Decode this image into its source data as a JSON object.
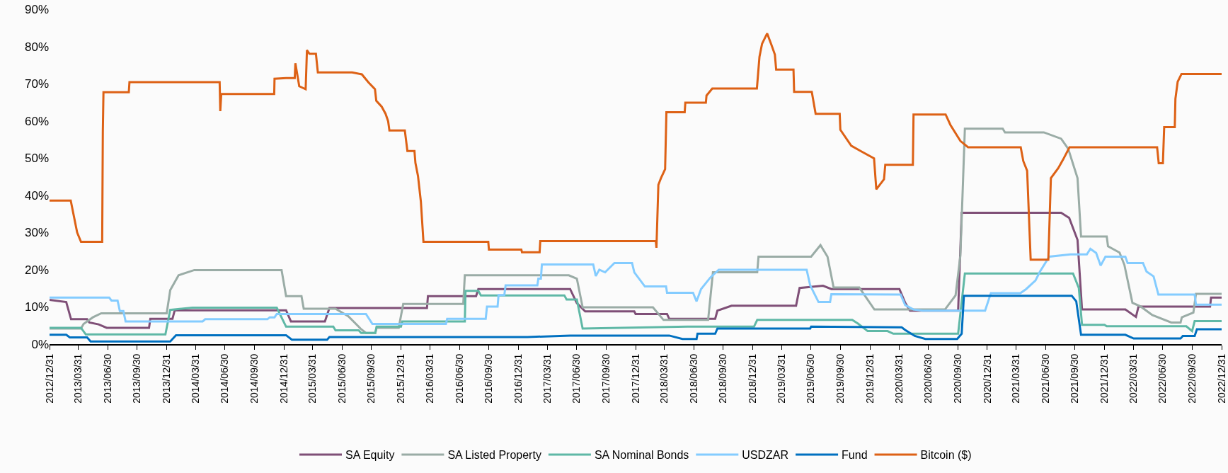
{
  "chart_data": {
    "type": "line",
    "legend": "bottom",
    "grid": false,
    "marker": "none",
    "line_style": "solid",
    "xlim": [
      "2012-12-31",
      "2022-12-31"
    ],
    "xticks": [
      {
        "value": "2012-12-31",
        "label": "2012/12/31"
      },
      {
        "value": "2013-03-31",
        "label": "2013/03/31"
      },
      {
        "value": "2013-06-30",
        "label": "2013/06/30"
      },
      {
        "value": "2013-09-30",
        "label": "2013/09/30"
      },
      {
        "value": "2013-12-31",
        "label": "2013/12/31"
      },
      {
        "value": "2014-03-31",
        "label": "2014/03/31"
      },
      {
        "value": "2014-06-30",
        "label": "2014/06/30"
      },
      {
        "value": "2014-09-30",
        "label": "2014/09/30"
      },
      {
        "value": "2014-12-31",
        "label": "2014/12/31"
      },
      {
        "value": "2015-03-31",
        "label": "2015/03/31"
      },
      {
        "value": "2015-06-30",
        "label": "2015/06/30"
      },
      {
        "value": "2015-09-30",
        "label": "2015/09/30"
      },
      {
        "value": "2015-12-31",
        "label": "2015/12/31"
      },
      {
        "value": "2016-03-31",
        "label": "2016/03/31"
      },
      {
        "value": "2016-06-30",
        "label": "2016/06/30"
      },
      {
        "value": "2016-09-30",
        "label": "2016/09/30"
      },
      {
        "value": "2016-12-31",
        "label": "2016/12/31"
      },
      {
        "value": "2017-03-31",
        "label": "2017/03/31"
      },
      {
        "value": "2017-06-30",
        "label": "2017/06/30"
      },
      {
        "value": "2017-09-30",
        "label": "2017/09/30"
      },
      {
        "value": "2017-12-31",
        "label": "2017/12/31"
      },
      {
        "value": "2018-03-31",
        "label": "2018/03/31"
      },
      {
        "value": "2018-06-30",
        "label": "2018/06/30"
      },
      {
        "value": "2018-09-30",
        "label": "2018/09/30"
      },
      {
        "value": "2018-12-31",
        "label": "2018/12/31"
      },
      {
        "value": "2019-03-31",
        "label": "2019/03/31"
      },
      {
        "value": "2019-06-30",
        "label": "2019/06/30"
      },
      {
        "value": "2019-09-30",
        "label": "2019/09/30"
      },
      {
        "value": "2019-12-31",
        "label": "2019/12/31"
      },
      {
        "value": "2020-03-31",
        "label": "2020/03/31"
      },
      {
        "value": "2020-06-30",
        "label": "2020/06/30"
      },
      {
        "value": "2020-09-30",
        "label": "2020/09/30"
      },
      {
        "value": "2020-12-31",
        "label": "2020/12/31"
      },
      {
        "value": "2021-03-31",
        "label": "2021/03/31"
      },
      {
        "value": "2021-06-30",
        "label": "2021/06/30"
      },
      {
        "value": "2021-09-30",
        "label": "2021/09/30"
      },
      {
        "value": "2021-12-31",
        "label": "2021/12/31"
      },
      {
        "value": "2022-03-31",
        "label": "2022/03/31"
      },
      {
        "value": "2022-06-30",
        "label": "2022/06/30"
      },
      {
        "value": "2022-09-30",
        "label": "2022/09/30"
      },
      {
        "value": "2022-12-31",
        "label": "2022/12/31"
      }
    ],
    "ylim": [
      0,
      90
    ],
    "yticks": [
      {
        "value": 0,
        "label": "0%"
      },
      {
        "value": 10,
        "label": "10%"
      },
      {
        "value": 20,
        "label": "20%"
      },
      {
        "value": 30,
        "label": "30%"
      },
      {
        "value": 40,
        "label": "40%"
      },
      {
        "value": 50,
        "label": "50%"
      },
      {
        "value": 60,
        "label": "60%"
      },
      {
        "value": 70,
        "label": "70%"
      },
      {
        "value": 80,
        "label": "80%"
      },
      {
        "value": 90,
        "label": "90%"
      }
    ],
    "series": [
      {
        "name": "SA Equity",
        "color": "#7f4f77",
        "x": [
          "2012-12-31",
          "2013-02-21",
          "2013-03-08",
          "2013-04-27",
          "2013-05-04",
          "2013-06-02",
          "2013-06-27",
          "2013-11-06",
          "2013-11-10",
          "2014-01-18",
          "2014-01-25",
          "2015-01-07",
          "2015-01-22",
          "2015-05-08",
          "2015-05-22",
          "2016-03-21",
          "2016-03-24",
          "2016-08-21",
          "2016-08-28",
          "2017-06-10",
          "2017-07-01",
          "2017-07-27",
          "2017-12-27",
          "2017-12-31",
          "2018-04-08",
          "2018-04-15",
          "2018-09-05",
          "2018-09-12",
          "2018-10-26",
          "2019-05-15",
          "2019-05-26",
          "2019-08-07",
          "2019-09-02",
          "2020-04-01",
          "2020-04-19",
          "2020-05-04",
          "2020-10-01",
          "2020-10-12",
          "2021-08-18",
          "2021-09-12",
          "2021-10-08",
          "2021-10-22",
          "2022-03-06",
          "2022-04-08",
          "2022-04-16",
          "2022-11-25",
          "2022-11-28",
          "2022-12-31"
        ],
        "values": [
          11.9,
          11.3,
          6.7,
          6.7,
          5.8,
          5.3,
          4.4,
          4.4,
          6.8,
          6.8,
          9.1,
          9.1,
          6.1,
          6.1,
          9.7,
          9.7,
          12.9,
          12.9,
          14.8,
          14.8,
          11.0,
          8.8,
          8.8,
          8.1,
          8.1,
          6.8,
          6.8,
          9.0,
          10.3,
          10.3,
          15.1,
          15.7,
          14.8,
          14.8,
          11.1,
          9.0,
          9.0,
          35.3,
          35.3,
          33.9,
          28,
          9.3,
          9.3,
          7.3,
          10.1,
          10.1,
          12.5,
          12.5
        ]
      },
      {
        "name": "SA Listed Property",
        "color": "#9aaca6",
        "x": [
          "2012-12-31",
          "2013-04-08",
          "2013-04-16",
          "2013-05-15",
          "2013-06-10",
          "2013-12-31",
          "2014-01-11",
          "2014-02-06",
          "2014-03-27",
          "2014-12-24",
          "2015-01-07",
          "2015-02-24",
          "2015-03-03",
          "2015-06-10",
          "2015-07-20",
          "2015-08-29",
          "2015-09-13",
          "2015-10-12",
          "2015-10-16",
          "2015-12-24",
          "2016-01-07",
          "2016-07-12",
          "2016-07-17",
          "2017-06-06",
          "2017-07-01",
          "2017-07-19",
          "2018-02-23",
          "2018-03-28",
          "2018-08-14",
          "2018-08-29",
          "2019-01-14",
          "2019-01-18",
          "2019-07-01",
          "2019-07-30",
          "2019-08-21",
          "2019-09-09",
          "2019-11-28",
          "2020-01-14",
          "2020-08-21",
          "2020-09-23",
          "2020-10-08",
          "2020-10-22",
          "2021-02-17",
          "2021-02-24",
          "2021-06-25",
          "2021-08-18",
          "2021-09-09",
          "2021-10-08",
          "2021-10-19",
          "2022-01-07",
          "2022-01-11",
          "2022-02-16",
          "2022-03-03",
          "2022-03-28",
          "2022-04-23",
          "2022-05-29",
          "2022-07-27",
          "2022-08-25",
          "2022-08-29",
          "2022-10-04",
          "2022-10-12",
          "2022-12-31"
        ],
        "values": [
          4.2,
          4.2,
          5.4,
          7.2,
          8.3,
          8.3,
          14.5,
          18.5,
          19.9,
          19.9,
          12.9,
          12.9,
          9.5,
          9.5,
          7.5,
          4.0,
          3.0,
          3.0,
          4.4,
          4.4,
          10.8,
          10.8,
          18.5,
          18.5,
          17.6,
          9.9,
          9.9,
          6.5,
          6.5,
          19.3,
          19.3,
          23.5,
          23.5,
          26.6,
          23.5,
          15.2,
          15.2,
          9.3,
          9.3,
          13.1,
          23.8,
          57.9,
          57.9,
          56.9,
          56.9,
          55.2,
          52.5,
          44.6,
          28.9,
          28.9,
          26.3,
          24.6,
          21.3,
          11.1,
          10.1,
          7.8,
          5.8,
          5.8,
          7.2,
          8.5,
          13.5,
          13.5
        ]
      },
      {
        "name": "SA Nominal Bonds",
        "color": "#5fb8a6",
        "x": [
          "2012-12-31",
          "2013-04-08",
          "2013-04-23",
          "2013-12-27",
          "2014-01-11",
          "2014-03-21",
          "2014-12-09",
          "2015-01-07",
          "2015-06-03",
          "2015-06-10",
          "2015-08-21",
          "2015-08-29",
          "2015-10-12",
          "2015-10-16",
          "2015-12-31",
          "2016-01-04",
          "2016-07-17",
          "2016-07-19",
          "2016-08-28",
          "2016-09-05",
          "2017-05-23",
          "2017-05-30",
          "2017-07-01",
          "2017-07-19",
          "2018-06-10",
          "2019-01-04",
          "2019-01-14",
          "2019-11-06",
          "2019-11-24",
          "2019-12-24",
          "2020-02-24",
          "2020-03-13",
          "2020-10-01",
          "2020-10-22",
          "2021-09-24",
          "2021-10-12",
          "2021-10-22",
          "2021-12-31",
          "2022-01-07",
          "2022-09-12",
          "2022-09-30",
          "2022-10-08",
          "2022-12-31"
        ],
        "values": [
          4.4,
          4.4,
          2.6,
          2.6,
          9.2,
          9.8,
          9.8,
          4.7,
          4.7,
          3.7,
          3.7,
          3.0,
          3.0,
          4.7,
          4.7,
          6.1,
          6.1,
          14.3,
          14.3,
          13.1,
          13.1,
          12.0,
          12.0,
          4.2,
          4.7,
          4.7,
          6.5,
          6.5,
          5.5,
          3.5,
          3.5,
          2.8,
          2.8,
          19.0,
          19.0,
          15.1,
          5.2,
          5.2,
          4.8,
          4.8,
          3.5,
          6.2,
          6.2
        ]
      },
      {
        "name": "USDZAR",
        "color": "#84ccff",
        "x": [
          "2012-12-31",
          "2013-07-05",
          "2013-07-12",
          "2013-07-31",
          "2013-08-07",
          "2013-08-18",
          "2013-08-25",
          "2014-04-22",
          "2014-04-30",
          "2014-11-10",
          "2014-11-17",
          "2014-12-02",
          "2014-12-09",
          "2015-09-13",
          "2015-10-03",
          "2016-05-19",
          "2016-05-23",
          "2016-09-20",
          "2016-09-24",
          "2016-10-27",
          "2016-10-30",
          "2016-11-17",
          "2016-11-21",
          "2017-02-28",
          "2017-03-03",
          "2017-03-11",
          "2017-03-14",
          "2017-08-21",
          "2017-08-29",
          "2017-09-09",
          "2017-09-27",
          "2017-10-26",
          "2017-12-20",
          "2017-12-27",
          "2018-01-29",
          "2018-04-05",
          "2018-04-08",
          "2018-06-28",
          "2018-07-09",
          "2018-07-23",
          "2018-08-21",
          "2018-09-16",
          "2019-06-17",
          "2019-06-28",
          "2019-07-24",
          "2019-08-29",
          "2019-09-02",
          "2020-04-05",
          "2020-04-19",
          "2020-05-15",
          "2020-06-13",
          "2020-12-24",
          "2021-01-11",
          "2021-04-13",
          "2021-05-01",
          "2021-05-30",
          "2021-06-13",
          "2021-07-12",
          "2021-09-16",
          "2021-11-06",
          "2021-11-17",
          "2021-12-05",
          "2021-12-19",
          "2022-01-03",
          "2022-03-06",
          "2022-03-13",
          "2022-04-30",
          "2022-05-11",
          "2022-06-02",
          "2022-06-17",
          "2022-10-08",
          "2022-10-12",
          "2022-12-31"
        ],
        "values": [
          12.5,
          12.5,
          11.7,
          11.7,
          8.9,
          8.9,
          6.1,
          6.1,
          6.7,
          6.7,
          7.2,
          7.2,
          8.1,
          8.1,
          5.4,
          5.4,
          6.8,
          6.8,
          10.1,
          10.1,
          13.2,
          13.2,
          15.8,
          15.8,
          17.6,
          17.6,
          21.4,
          21.4,
          18.3,
          20,
          19.3,
          21.8,
          21.8,
          19.3,
          15.5,
          15.5,
          13.8,
          13.8,
          11.5,
          14.8,
          17.9,
          20,
          20,
          15.8,
          11.3,
          11.3,
          13.4,
          13.3,
          10.5,
          9.3,
          9.0,
          9.0,
          13.7,
          13.7,
          14.8,
          17.1,
          19.5,
          23.5,
          24.1,
          24.1,
          25.6,
          24.5,
          21.1,
          23.5,
          23.5,
          21.8,
          21.8,
          19.5,
          18.2,
          13.3,
          13.3,
          10.6,
          10.6
        ]
      },
      {
        "name": "Fund",
        "color": "#0070c0",
        "x": [
          "2012-12-31",
          "2013-02-21",
          "2013-03-04",
          "2013-04-27",
          "2013-05-08",
          "2014-01-11",
          "2014-01-29",
          "2015-01-07",
          "2015-01-25",
          "2015-05-15",
          "2015-05-22",
          "2017-01-28",
          "2017-06-10",
          "2018-04-15",
          "2018-05-26",
          "2018-07-09",
          "2018-07-12",
          "2018-09-05",
          "2018-09-12",
          "2019-06-28",
          "2019-07-01",
          "2020-04-08",
          "2020-04-19",
          "2020-05-19",
          "2020-06-21",
          "2020-09-28",
          "2020-10-12",
          "2020-10-19",
          "2021-09-20",
          "2021-10-04",
          "2021-10-19",
          "2022-03-06",
          "2022-04-01",
          "2022-08-25",
          "2022-09-01",
          "2022-10-08",
          "2022-10-15",
          "2022-12-31"
        ],
        "values": [
          2.5,
          2.5,
          1.8,
          1.8,
          0.7,
          0.7,
          2.4,
          2.4,
          1.2,
          1.2,
          1.9,
          1.9,
          2.3,
          2.3,
          1.4,
          1.4,
          2.8,
          2.8,
          4.2,
          4.2,
          4.7,
          4.5,
          3.8,
          2.2,
          1.4,
          1.4,
          2.8,
          13.0,
          13.0,
          11.5,
          2.5,
          2.5,
          1.5,
          1.5,
          2.2,
          2.2,
          4.0,
          4.0
        ]
      },
      {
        "name": "Bitcoin ($)",
        "color": "#dd6115",
        "x": [
          "2012-12-31",
          "2013-03-07",
          "2013-03-27",
          "2013-04-08",
          "2013-06-13",
          "2013-06-15",
          "2013-06-17",
          "2013-09-04",
          "2013-09-06",
          "2014-06-14",
          "2014-06-16",
          "2014-06-19",
          "2014-12-01",
          "2014-12-02",
          "2015-01-07",
          "2015-02-03",
          "2015-02-05",
          "2015-02-17",
          "2015-03-09",
          "2015-03-13",
          "2015-03-21",
          "2015-04-10",
          "2015-04-16",
          "2015-08-01",
          "2015-08-31",
          "2015-09-21",
          "2015-10-11",
          "2015-10-15",
          "2015-11-01",
          "2015-11-13",
          "2015-11-21",
          "2015-11-25",
          "2016-01-12",
          "2016-01-20",
          "2016-02-11",
          "2016-02-14",
          "2016-02-22",
          "2016-03-02",
          "2016-03-10",
          "2016-09-28",
          "2016-09-30",
          "2017-01-09",
          "2017-01-11",
          "2017-03-07",
          "2017-03-09",
          "2018-03-04",
          "2018-03-06",
          "2018-03-12",
          "2018-03-20",
          "2018-04-02",
          "2018-04-06",
          "2018-06-02",
          "2018-06-04",
          "2018-08-07",
          "2018-08-09",
          "2018-08-27",
          "2019-01-13",
          "2019-01-21",
          "2019-01-29",
          "2019-02-14",
          "2019-02-27",
          "2019-03-10",
          "2019-03-14",
          "2019-05-07",
          "2019-05-09",
          "2019-07-03",
          "2019-07-15",
          "2019-09-28",
          "2019-09-30",
          "2019-11-03",
          "2019-12-04",
          "2020-01-13",
          "2020-01-20",
          "2020-02-13",
          "2020-02-17",
          "2020-05-13",
          "2020-05-15",
          "2020-08-23",
          "2020-09-07",
          "2020-10-08",
          "2020-11-01",
          "2021-04-14",
          "2021-04-22",
          "2021-05-04",
          "2021-05-15",
          "2021-07-09",
          "2021-07-17",
          "2021-08-09",
          "2021-08-24",
          "2021-09-13",
          "2022-06-13",
          "2022-06-18",
          "2022-07-01",
          "2022-07-05",
          "2022-08-07",
          "2022-08-09",
          "2022-08-16",
          "2022-08-28",
          "2022-12-31"
        ],
        "values": [
          38.6,
          38.6,
          30,
          27.5,
          27.5,
          57,
          67.7,
          67.7,
          70.4,
          70.4,
          62.6,
          67.2,
          67.2,
          71.3,
          71.5,
          71.5,
          75.5,
          69.3,
          68.5,
          79,
          78,
          78,
          73,
          73,
          72.5,
          70.3,
          68.5,
          65.4,
          63.8,
          61.9,
          59.9,
          57.4,
          57.4,
          51.9,
          51.9,
          48.7,
          45.2,
          38.3,
          27.5,
          27.5,
          25.4,
          25.4,
          24.7,
          24.7,
          27.7,
          27.7,
          25.9,
          42.8,
          44.6,
          47,
          62.3,
          62.3,
          64.9,
          64.9,
          66.8,
          68.7,
          68.7,
          77.2,
          80.7,
          83.5,
          80.5,
          77.8,
          73.8,
          73.8,
          67.8,
          67.8,
          61.9,
          61.9,
          57.6,
          53.3,
          51.8,
          49.9,
          41.6,
          44.3,
          48.2,
          48.2,
          61.7,
          61.7,
          58.9,
          54.6,
          52.9,
          52.9,
          49.2,
          46.6,
          22.7,
          22.7,
          44.6,
          47.3,
          49.6,
          52.9,
          52.9,
          48.6,
          48.6,
          58.3,
          58.3,
          65.9,
          70.5,
          72.6,
          72.6
        ]
      }
    ]
  }
}
